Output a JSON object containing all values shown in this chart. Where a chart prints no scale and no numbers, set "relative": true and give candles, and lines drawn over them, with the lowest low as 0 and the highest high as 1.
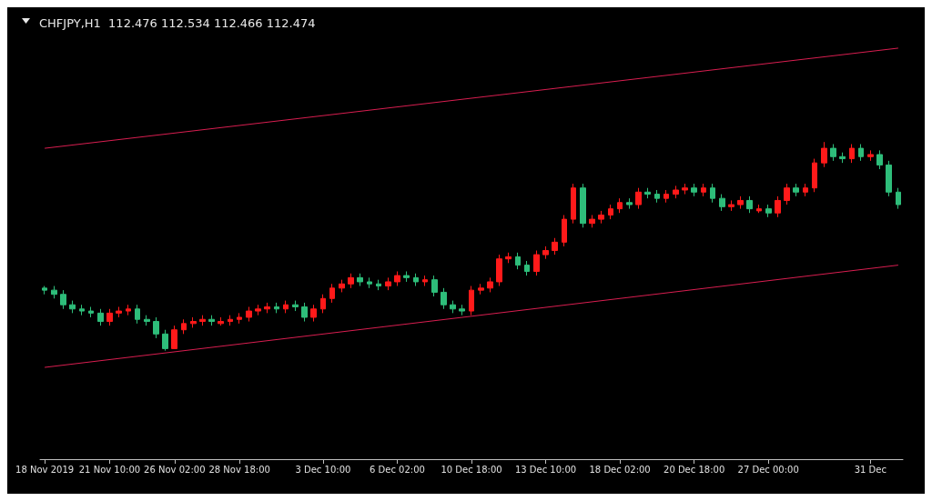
{
  "chart_data": {
    "type": "candlestick",
    "title": "CHFJPY,H1  112.476 112.534 112.466 112.474",
    "relative": true,
    "marker": "none",
    "grid": false,
    "categories": [
      "18 Nov 2019",
      null,
      null,
      null,
      null,
      null,
      null,
      "21 Nov 10:00",
      null,
      null,
      null,
      null,
      null,
      null,
      "26 Nov 02:00",
      null,
      null,
      null,
      null,
      null,
      null,
      "28 Nov 18:00",
      null,
      null,
      null,
      null,
      null,
      null,
      null,
      null,
      "3 Dec 10:00",
      null,
      null,
      null,
      null,
      null,
      null,
      null,
      "6 Dec 02:00",
      null,
      null,
      null,
      null,
      null,
      null,
      null,
      "10 Dec 18:00",
      null,
      null,
      null,
      null,
      null,
      null,
      null,
      "13 Dec 10:00",
      null,
      null,
      null,
      null,
      null,
      null,
      null,
      "18 Dec 02:00",
      null,
      null,
      null,
      null,
      null,
      null,
      null,
      "20 Dec 18:00",
      null,
      null,
      null,
      null,
      null,
      null,
      null,
      "27 Dec 00:00",
      null,
      null,
      null,
      null,
      null,
      null,
      null,
      null,
      null,
      null,
      "31 Dec",
      null,
      null,
      null
    ],
    "ohlc": [
      [
        0.3,
        0.31,
        0.27,
        0.29
      ],
      [
        0.29,
        0.31,
        0.25,
        0.27
      ],
      [
        0.27,
        0.29,
        0.2,
        0.22
      ],
      [
        0.22,
        0.24,
        0.18,
        0.2
      ],
      [
        0.2,
        0.22,
        0.17,
        0.19
      ],
      [
        0.19,
        0.21,
        0.16,
        0.18
      ],
      [
        0.18,
        0.2,
        0.12,
        0.14
      ],
      [
        0.14,
        0.2,
        0.12,
        0.18
      ],
      [
        0.18,
        0.21,
        0.16,
        0.19
      ],
      [
        0.19,
        0.22,
        0.17,
        0.2
      ],
      [
        0.2,
        0.22,
        0.13,
        0.15
      ],
      [
        0.15,
        0.17,
        0.12,
        0.14
      ],
      [
        0.14,
        0.16,
        0.06,
        0.08
      ],
      [
        0.08,
        0.1,
        0.0,
        0.01
      ],
      [
        0.01,
        0.12,
        0.01,
        0.1
      ],
      [
        0.1,
        0.15,
        0.08,
        0.13
      ],
      [
        0.13,
        0.16,
        0.11,
        0.14
      ],
      [
        0.14,
        0.17,
        0.12,
        0.15
      ],
      [
        0.15,
        0.17,
        0.12,
        0.14
      ],
      [
        0.13,
        0.16,
        0.12,
        0.14
      ],
      [
        0.14,
        0.17,
        0.12,
        0.15
      ],
      [
        0.15,
        0.18,
        0.13,
        0.16
      ],
      [
        0.16,
        0.21,
        0.14,
        0.19
      ],
      [
        0.19,
        0.22,
        0.17,
        0.2
      ],
      [
        0.2,
        0.23,
        0.18,
        0.21
      ],
      [
        0.21,
        0.23,
        0.18,
        0.2
      ],
      [
        0.2,
        0.24,
        0.18,
        0.22
      ],
      [
        0.22,
        0.24,
        0.19,
        0.21
      ],
      [
        0.21,
        0.23,
        0.14,
        0.16
      ],
      [
        0.16,
        0.22,
        0.14,
        0.2
      ],
      [
        0.2,
        0.27,
        0.18,
        0.25
      ],
      [
        0.25,
        0.32,
        0.23,
        0.3
      ],
      [
        0.3,
        0.34,
        0.28,
        0.32
      ],
      [
        0.32,
        0.37,
        0.3,
        0.35
      ],
      [
        0.35,
        0.37,
        0.31,
        0.33
      ],
      [
        0.33,
        0.35,
        0.3,
        0.32
      ],
      [
        0.32,
        0.34,
        0.29,
        0.31
      ],
      [
        0.31,
        0.35,
        0.29,
        0.33
      ],
      [
        0.33,
        0.38,
        0.31,
        0.36
      ],
      [
        0.36,
        0.38,
        0.33,
        0.35
      ],
      [
        0.35,
        0.37,
        0.31,
        0.33
      ],
      [
        0.33,
        0.36,
        0.31,
        0.34
      ],
      [
        0.34,
        0.36,
        0.26,
        0.28
      ],
      [
        0.28,
        0.3,
        0.2,
        0.22
      ],
      [
        0.22,
        0.24,
        0.18,
        0.2
      ],
      [
        0.2,
        0.22,
        0.17,
        0.19
      ],
      [
        0.19,
        0.31,
        0.17,
        0.29
      ],
      [
        0.29,
        0.32,
        0.27,
        0.3
      ],
      [
        0.3,
        0.35,
        0.28,
        0.33
      ],
      [
        0.33,
        0.46,
        0.31,
        0.44
      ],
      [
        0.44,
        0.47,
        0.42,
        0.45
      ],
      [
        0.45,
        0.47,
        0.39,
        0.41
      ],
      [
        0.41,
        0.43,
        0.36,
        0.38
      ],
      [
        0.38,
        0.48,
        0.36,
        0.46
      ],
      [
        0.46,
        0.5,
        0.44,
        0.48
      ],
      [
        0.48,
        0.54,
        0.46,
        0.52
      ],
      [
        0.52,
        0.65,
        0.5,
        0.63
      ],
      [
        0.63,
        0.8,
        0.61,
        0.78
      ],
      [
        0.78,
        0.8,
        0.59,
        0.61
      ],
      [
        0.61,
        0.65,
        0.59,
        0.63
      ],
      [
        0.63,
        0.67,
        0.61,
        0.65
      ],
      [
        0.65,
        0.7,
        0.63,
        0.68
      ],
      [
        0.68,
        0.73,
        0.66,
        0.71
      ],
      [
        0.71,
        0.73,
        0.68,
        0.7
      ],
      [
        0.7,
        0.78,
        0.68,
        0.76
      ],
      [
        0.76,
        0.78,
        0.73,
        0.75
      ],
      [
        0.75,
        0.77,
        0.71,
        0.73
      ],
      [
        0.73,
        0.77,
        0.71,
        0.75
      ],
      [
        0.75,
        0.79,
        0.73,
        0.77
      ],
      [
        0.77,
        0.8,
        0.75,
        0.78
      ],
      [
        0.78,
        0.8,
        0.74,
        0.76
      ],
      [
        0.76,
        0.8,
        0.74,
        0.78
      ],
      [
        0.78,
        0.8,
        0.71,
        0.73
      ],
      [
        0.73,
        0.75,
        0.67,
        0.69
      ],
      [
        0.69,
        0.72,
        0.67,
        0.7
      ],
      [
        0.7,
        0.74,
        0.68,
        0.72
      ],
      [
        0.72,
        0.74,
        0.66,
        0.68
      ],
      [
        0.67,
        0.7,
        0.66,
        0.68
      ],
      [
        0.68,
        0.7,
        0.64,
        0.66
      ],
      [
        0.66,
        0.74,
        0.64,
        0.72
      ],
      [
        0.72,
        0.8,
        0.7,
        0.78
      ],
      [
        0.78,
        0.8,
        0.74,
        0.76
      ],
      [
        0.76,
        0.8,
        0.74,
        0.78
      ],
      [
        0.78,
        0.92,
        0.76,
        0.9
      ],
      [
        0.9,
        1.0,
        0.88,
        0.97
      ],
      [
        0.97,
        0.99,
        0.91,
        0.93
      ],
      [
        0.93,
        0.95,
        0.9,
        0.92
      ],
      [
        0.92,
        0.99,
        0.9,
        0.97
      ],
      [
        0.97,
        0.99,
        0.91,
        0.93
      ],
      [
        0.93,
        0.96,
        0.91,
        0.94
      ],
      [
        0.94,
        0.96,
        0.87,
        0.89
      ],
      [
        0.89,
        0.91,
        0.74,
        0.76
      ],
      [
        0.76,
        0.78,
        0.68,
        0.7
      ]
    ],
    "colors": [
      "#2ebd7a",
      "#2ebd7a",
      "#2ebd7a",
      "#2ebd7a",
      "#2ebd7a",
      "#2ebd7a",
      "#2ebd7a",
      "#ff1a1a",
      "#ff1a1a",
      "#ff1a1a",
      "#2ebd7a",
      "#2ebd7a",
      "#2ebd7a",
      "#2ebd7a",
      "#ff1a1a",
      "#ff1a1a",
      "#ff1a1a",
      "#ff1a1a",
      "#2ebd7a",
      "#ff1a1a",
      "#ff1a1a",
      "#ff1a1a",
      "#ff1a1a",
      "#ff1a1a",
      "#ff1a1a",
      "#2ebd7a",
      "#ff1a1a",
      "#2ebd7a",
      "#2ebd7a",
      "#ff1a1a",
      "#ff1a1a",
      "#ff1a1a",
      "#ff1a1a",
      "#ff1a1a",
      "#2ebd7a",
      "#2ebd7a",
      "#2ebd7a",
      "#ff1a1a",
      "#ff1a1a",
      "#2ebd7a",
      "#2ebd7a",
      "#ff1a1a",
      "#2ebd7a",
      "#2ebd7a",
      "#2ebd7a",
      "#2ebd7a",
      "#ff1a1a",
      "#ff1a1a",
      "#ff1a1a",
      "#ff1a1a",
      "#ff1a1a",
      "#2ebd7a",
      "#2ebd7a",
      "#ff1a1a",
      "#ff1a1a",
      "#ff1a1a",
      "#ff1a1a",
      "#ff1a1a",
      "#2ebd7a",
      "#ff1a1a",
      "#ff1a1a",
      "#ff1a1a",
      "#ff1a1a",
      "#2ebd7a",
      "#ff1a1a",
      "#2ebd7a",
      "#2ebd7a",
      "#ff1a1a",
      "#ff1a1a",
      "#ff1a1a",
      "#2ebd7a",
      "#ff1a1a",
      "#2ebd7a",
      "#2ebd7a",
      "#ff1a1a",
      "#ff1a1a",
      "#2ebd7a",
      "#ff1a1a",
      "#2ebd7a",
      "#ff1a1a",
      "#ff1a1a",
      "#2ebd7a",
      "#ff1a1a",
      "#ff1a1a",
      "#ff1a1a",
      "#2ebd7a",
      "#2ebd7a",
      "#ff1a1a",
      "#2ebd7a",
      "#ff1a1a",
      "#2ebd7a",
      "#2ebd7a",
      "#2ebd7a"
    ],
    "series": [
      {
        "type": "line",
        "color": "#d81e50",
        "values": [
          0.97,
          null,
          null,
          null,
          null,
          null,
          null,
          null,
          null,
          null,
          null,
          null,
          null,
          null,
          null,
          null,
          null,
          null,
          null,
          null,
          null,
          null,
          null,
          null,
          null,
          null,
          null,
          null,
          null,
          null,
          null,
          null,
          null,
          null,
          null,
          null,
          null,
          null,
          null,
          null,
          null,
          null,
          null,
          null,
          null,
          null,
          null,
          null,
          null,
          null,
          null,
          null,
          null,
          null,
          null,
          null,
          null,
          null,
          null,
          null,
          null,
          null,
          null,
          null,
          null,
          null,
          null,
          null,
          null,
          null,
          null,
          null,
          null,
          null,
          null,
          null,
          null,
          null,
          null,
          null,
          null,
          null,
          null,
          null,
          null,
          null,
          null,
          null,
          null,
          null,
          null,
          null,
          1.45
        ]
      },
      {
        "type": "line",
        "color": "#d81e50",
        "values": [
          -0.08,
          null,
          null,
          null,
          null,
          null,
          null,
          null,
          null,
          null,
          null,
          null,
          null,
          null,
          null,
          null,
          null,
          null,
          null,
          null,
          null,
          null,
          null,
          null,
          null,
          null,
          null,
          null,
          null,
          null,
          null,
          null,
          null,
          null,
          null,
          null,
          null,
          null,
          null,
          null,
          null,
          null,
          null,
          null,
          null,
          null,
          null,
          null,
          null,
          null,
          null,
          null,
          null,
          null,
          null,
          null,
          null,
          null,
          null,
          null,
          null,
          null,
          null,
          null,
          null,
          null,
          null,
          null,
          null,
          null,
          null,
          null,
          null,
          null,
          null,
          null,
          null,
          null,
          null,
          null,
          null,
          null,
          null,
          null,
          null,
          null,
          null,
          null,
          null,
          null,
          null,
          null,
          0.41
        ]
      }
    ]
  }
}
